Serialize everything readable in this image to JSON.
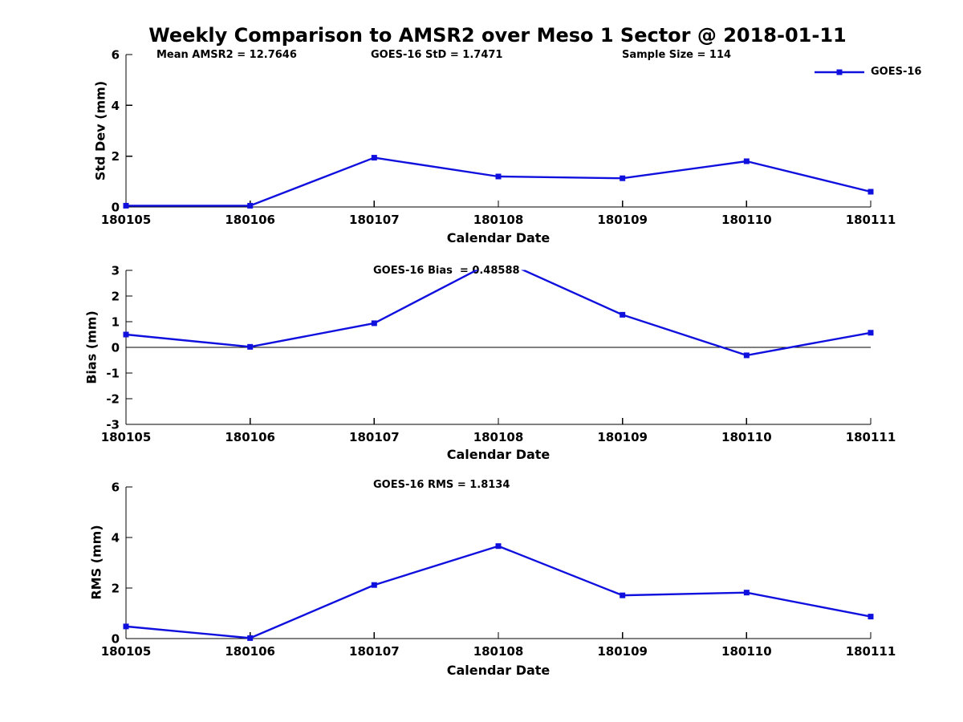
{
  "title": "Weekly Comparison to AMSR2 over Meso 1 Sector @ 2018-01-11",
  "accent_color": "#1010DE",
  "text_color": "#000000",
  "background_color": "#ffffff",
  "xlabel": "Calendar Date",
  "legend": {
    "label": "GOES-16",
    "marker": "filled-square",
    "position": "top-right"
  },
  "x_categories": [
    "180105",
    "180106",
    "180107",
    "180108",
    "180109",
    "180110",
    "180111"
  ],
  "chart_data": [
    {
      "type": "line",
      "title": "",
      "ylabel": "Std Dev (mm)",
      "xlabel": "Calendar Date",
      "ylim": [
        0,
        6
      ],
      "yticks": [
        0,
        2,
        4,
        6
      ],
      "grid": false,
      "categories": [
        "180105",
        "180106",
        "180107",
        "180108",
        "180109",
        "180110",
        "180111"
      ],
      "series": [
        {
          "name": "GOES-16",
          "values": [
            0.05,
            0.05,
            1.94,
            1.2,
            1.13,
            1.8,
            0.6
          ]
        }
      ],
      "annotations": [
        "Mean AMSR2 = 12.7646",
        "GOES-16 StD = 1.7471",
        "Sample Size = 114"
      ]
    },
    {
      "type": "line",
      "title": "",
      "ylabel": "Bias (mm)",
      "xlabel": "Calendar Date",
      "ylim": [
        -3,
        3
      ],
      "yticks": [
        -3,
        -2,
        -1,
        0,
        1,
        2,
        3
      ],
      "grid": false,
      "zero_line": true,
      "categories": [
        "180105",
        "180106",
        "180107",
        "180108",
        "180109",
        "180110",
        "180111"
      ],
      "series": [
        {
          "name": "GOES-16",
          "values": [
            0.5,
            0.02,
            0.94,
            3.45,
            1.27,
            -0.31,
            0.57
          ]
        }
      ],
      "annotations": [
        "GOES-16 Bias  = 0.48588"
      ]
    },
    {
      "type": "line",
      "title": "",
      "ylabel": "RMS (mm)",
      "xlabel": "Calendar Date",
      "ylim": [
        0,
        6
      ],
      "yticks": [
        0,
        2,
        4,
        6
      ],
      "grid": false,
      "categories": [
        "180105",
        "180106",
        "180107",
        "180108",
        "180109",
        "180110",
        "180111"
      ],
      "series": [
        {
          "name": "GOES-16",
          "values": [
            0.48,
            0.02,
            2.12,
            3.66,
            1.71,
            1.82,
            0.87
          ]
        }
      ],
      "annotations": [
        "GOES-16 RMS = 1.8134"
      ]
    }
  ]
}
